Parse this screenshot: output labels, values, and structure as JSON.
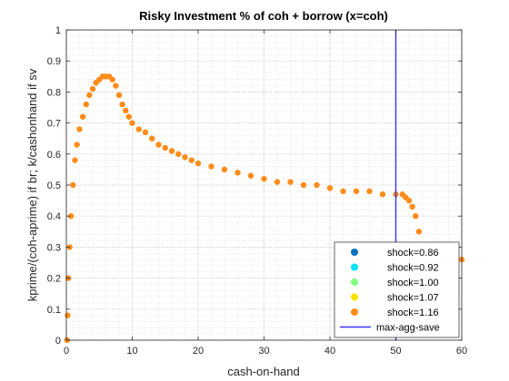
{
  "chart_data": {
    "type": "scatter",
    "title": "Risky Investment % of coh + borrow (x=coh)",
    "xlabel": "cash-on-hand",
    "ylabel": "kprime/(coh-aprime) if br; k/cashonhand if sv",
    "xlim": [
      0,
      60
    ],
    "ylim": [
      0,
      1
    ],
    "x_ticks": [
      "0",
      "10",
      "20",
      "30",
      "40",
      "50",
      "60"
    ],
    "y_ticks": [
      "0",
      "0.1",
      "0.2",
      "0.3",
      "0.4",
      "0.5",
      "0.6",
      "0.7",
      "0.8",
      "0.9",
      "1"
    ],
    "grid": true,
    "minor_grid": true,
    "legend_position": "bottom-right",
    "series": [
      {
        "name": "shock=0.86",
        "color": "#0072BD",
        "x": [],
        "y": []
      },
      {
        "name": "shock=0.92",
        "color": "#00E5FF",
        "x": [],
        "y": []
      },
      {
        "name": "shock=1.00",
        "color": "#80FF80",
        "x": [],
        "y": []
      },
      {
        "name": "shock=1.07",
        "color": "#FFE100",
        "x": [],
        "y": []
      },
      {
        "name": "shock=1.16",
        "color": "#FF8C1A",
        "x": [
          0.1,
          0.2,
          0.3,
          0.5,
          0.7,
          1.0,
          1.3,
          1.6,
          2.0,
          2.5,
          3.0,
          3.5,
          4.0,
          4.5,
          5.0,
          5.5,
          6.0,
          6.5,
          7.0,
          7.5,
          8.0,
          8.5,
          9.0,
          9.5,
          10.0,
          11.0,
          12.0,
          13.0,
          14.0,
          15.0,
          16.0,
          17.0,
          18.0,
          19.0,
          20.0,
          22.0,
          24.0,
          26.0,
          28.0,
          30.0,
          32.0,
          34.0,
          36.0,
          38.0,
          40.0,
          42.0,
          44.0,
          46.0,
          48.0,
          50.0,
          51.0,
          51.5,
          52.0,
          52.5,
          53.0,
          53.5,
          54.0,
          54.5,
          55.0,
          56.0,
          57.0,
          58.0,
          59.0,
          60.0
        ],
        "y": [
          0.0,
          0.08,
          0.2,
          0.3,
          0.4,
          0.5,
          0.58,
          0.63,
          0.68,
          0.72,
          0.76,
          0.79,
          0.81,
          0.83,
          0.84,
          0.85,
          0.85,
          0.85,
          0.84,
          0.82,
          0.79,
          0.76,
          0.74,
          0.72,
          0.7,
          0.68,
          0.67,
          0.65,
          0.63,
          0.62,
          0.61,
          0.6,
          0.59,
          0.58,
          0.57,
          0.56,
          0.55,
          0.54,
          0.53,
          0.52,
          0.51,
          0.51,
          0.5,
          0.5,
          0.49,
          0.48,
          0.48,
          0.48,
          0.47,
          0.47,
          0.47,
          0.46,
          0.45,
          0.43,
          0.4,
          0.35,
          0.3,
          0.27,
          0.26,
          0.28,
          0.28,
          0.27,
          0.27,
          0.26
        ]
      }
    ],
    "vline": {
      "name": "max-agg-save",
      "x": 50,
      "color": "#3333FF"
    }
  }
}
